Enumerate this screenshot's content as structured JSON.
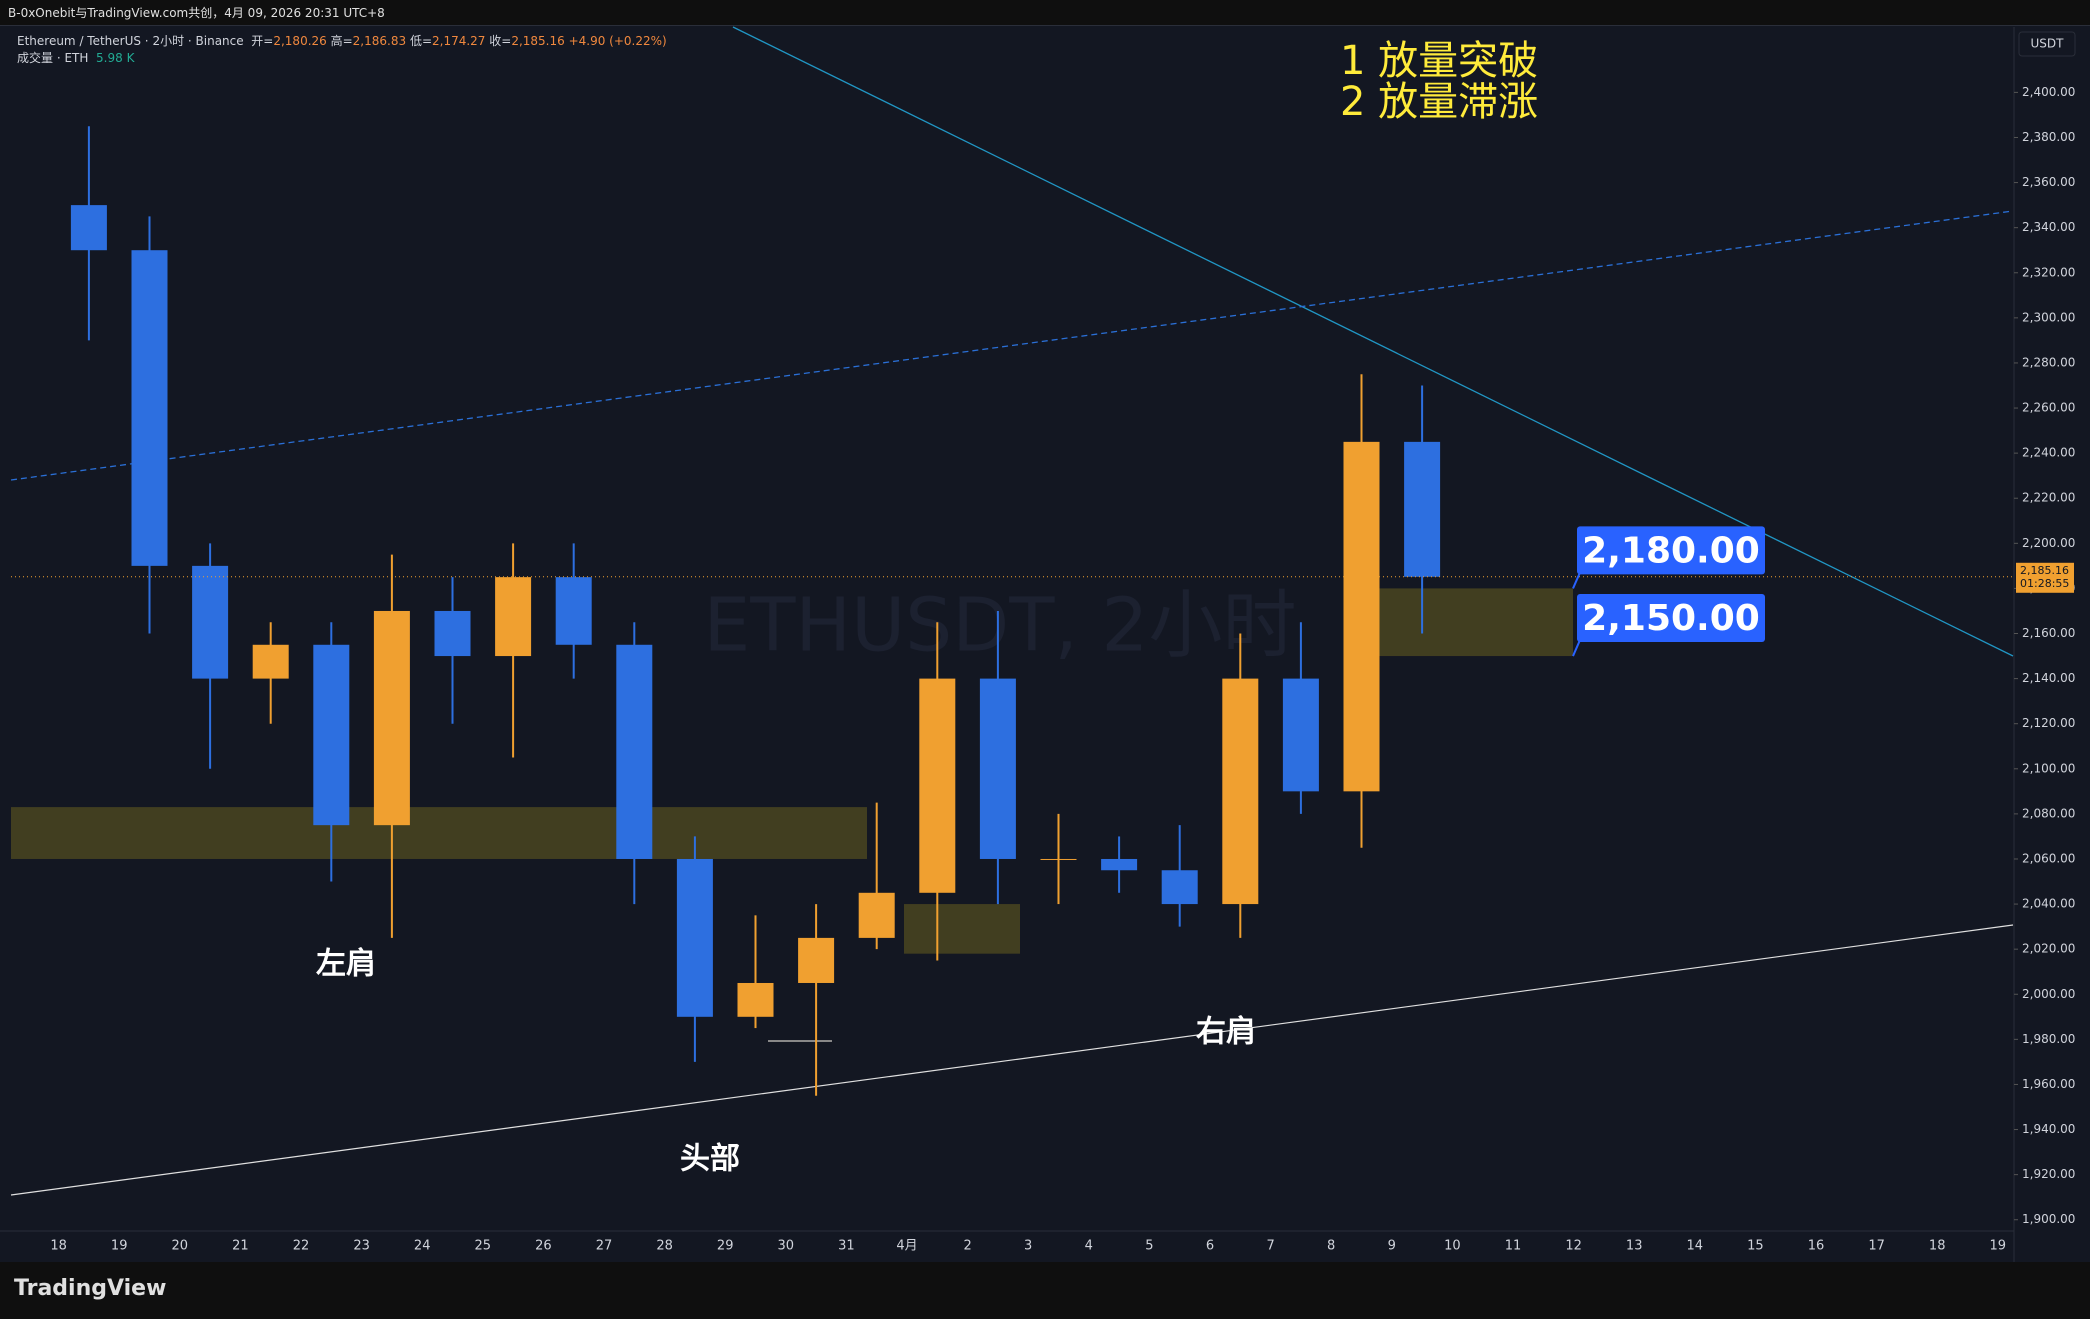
{
  "header": {
    "share_text": "B-0xOnebit与TradingView.com共创，4月 09, 2026 20:31 UTC+8",
    "symbol": "Ethereum / TetherUS · 2小时 · Binance",
    "ohlc": [
      {
        "label": "开=",
        "value": "2,180.26"
      },
      {
        "label": "高=",
        "value": "2,186.83"
      },
      {
        "label": "低=",
        "value": "2,174.27"
      },
      {
        "label": "收=",
        "value": "2,185.16"
      }
    ],
    "change": "+4.90 (+0.22%)",
    "volume_label": "成交量 · ETH",
    "volume_value": "5.98 K"
  },
  "chart_data": {
    "type": "candlestick",
    "watermark": "ETHUSDT, 2小时",
    "currency": "USDT",
    "annotations": [
      "1 放量突破",
      "2 放量滞涨"
    ],
    "pattern_labels": [
      "左肩",
      "头部",
      "右肩"
    ],
    "categories": [
      "18",
      "19",
      "20",
      "21",
      "22",
      "23",
      "24",
      "25",
      "26",
      "27",
      "28",
      "29",
      "30",
      "31",
      "4月",
      "2",
      "3",
      "4",
      "5",
      "6",
      "7",
      "8",
      "9",
      "10",
      "11",
      "12",
      "13",
      "14",
      "15",
      "16",
      "17",
      "18",
      "19"
    ],
    "open": [
      2350,
      2330,
      2190,
      2140,
      2155,
      2075,
      2170,
      2150,
      2185,
      2155,
      2060,
      1990,
      2005,
      2025,
      2045,
      2140,
      2060,
      2060,
      2055,
      2040,
      2140,
      2090,
      2245,
      null,
      null,
      null,
      null,
      null,
      null,
      null,
      null,
      null,
      null
    ],
    "high": [
      2385,
      2345,
      2200,
      2165,
      2165,
      2195,
      2185,
      2200,
      2200,
      2165,
      2070,
      2035,
      2040,
      2085,
      2165,
      2170,
      2080,
      2070,
      2075,
      2160,
      2165,
      2275,
      2270,
      null,
      null,
      null,
      null,
      null,
      null,
      null,
      null,
      null,
      null
    ],
    "low": [
      2290,
      2160,
      2100,
      2120,
      2050,
      2025,
      2120,
      2105,
      2140,
      2040,
      1970,
      1985,
      1955,
      2020,
      2015,
      2040,
      2040,
      2045,
      2030,
      2025,
      2080,
      2065,
      2160,
      null,
      null,
      null,
      null,
      null,
      null,
      null,
      null,
      null,
      null
    ],
    "close": [
      2330,
      2190,
      2140,
      2155,
      2075,
      2170,
      2150,
      2185,
      2155,
      2060,
      1990,
      2005,
      2025,
      2045,
      2140,
      2060,
      2060,
      2055,
      2040,
      2140,
      2090,
      2245,
      2185.16,
      null,
      null,
      null,
      null,
      null,
      null,
      null,
      null,
      null,
      null
    ],
    "up_color": "#f0a030",
    "down_color": "#2d6fe0",
    "ylim": [
      1895,
      2429
    ],
    "yticks": [
      {
        "value": 1900,
        "label": "1,900.00"
      },
      {
        "value": 1920,
        "label": "1,920.00"
      },
      {
        "value": 1940,
        "label": "1,940.00"
      },
      {
        "value": 1960,
        "label": "1,960.00"
      },
      {
        "value": 1980,
        "label": "1,980.00"
      },
      {
        "value": 2000,
        "label": "2,000.00"
      },
      {
        "value": 2020,
        "label": "2,020.00"
      },
      {
        "value": 2040,
        "label": "2,040.00"
      },
      {
        "value": 2060,
        "label": "2,060.00"
      },
      {
        "value": 2080,
        "label": "2,080.00"
      },
      {
        "value": 2100,
        "label": "2,100.00"
      },
      {
        "value": 2120,
        "label": "2,120.00"
      },
      {
        "value": 2140,
        "label": "2,140.00"
      },
      {
        "value": 2160,
        "label": "2,160.00"
      },
      {
        "value": 2180,
        "label": "2,180.00"
      },
      {
        "value": 2200,
        "label": "2,200.00"
      },
      {
        "value": 2220,
        "label": "2,220.00"
      },
      {
        "value": 2240,
        "label": "2,240.00"
      },
      {
        "value": 2260,
        "label": "2,260.00"
      },
      {
        "value": 2280,
        "label": "2,280.00"
      },
      {
        "value": 2300,
        "label": "2,300.00"
      },
      {
        "value": 2320,
        "label": "2,320.00"
      },
      {
        "value": 2340,
        "label": "2,340.00"
      },
      {
        "value": 2360,
        "label": "2,360.00"
      },
      {
        "value": 2380,
        "label": "2,380.00"
      },
      {
        "value": 2400,
        "label": "2,400.00"
      }
    ],
    "last_price": {
      "value": 2185.16,
      "label": "2,185.16"
    },
    "countdown": "01:28:55",
    "last_color": "#f0a030",
    "levels": [
      {
        "value": 2180,
        "label": "2,180.00"
      },
      {
        "value": 2150,
        "label": "2,150.00"
      }
    ],
    "zones": [
      {
        "top": 2083,
        "bottom": 2060
      },
      {
        "top": 2040,
        "bottom": 2018
      }
    ],
    "zone_color": "#4a4520"
  },
  "footer": {
    "brand": "TradingView"
  }
}
